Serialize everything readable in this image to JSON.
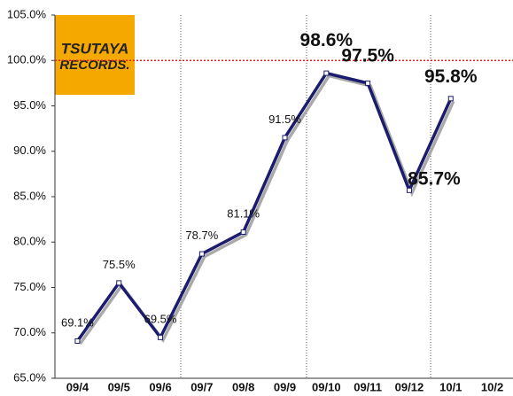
{
  "chart_data": {
    "type": "line",
    "logo": [
      "TSUTAYA",
      "RECORDS."
    ],
    "categories": [
      "09/4",
      "09/5",
      "09/6",
      "09/7",
      "09/8",
      "09/9",
      "09/10",
      "09/11",
      "09/12",
      "10/1",
      "10/2"
    ],
    "series": [
      {
        "color": "#1c1c6e",
        "values": [
          69.1,
          75.5,
          69.5,
          78.7,
          81.1,
          91.5,
          98.6,
          97.5,
          85.7,
          95.8,
          null
        ],
        "value_labels": [
          "69.1%",
          "75.5%",
          "69.5%",
          "78.7%",
          "81.1%",
          "91.5%",
          "98.6%",
          "97.5%",
          "85.7%",
          "95.8%",
          null
        ]
      }
    ],
    "ylim": [
      65,
      105
    ],
    "yticks": [
      {
        "value": 65,
        "label": "65.0%"
      },
      {
        "value": 70,
        "label": "70.0%"
      },
      {
        "value": 75,
        "label": "75.0%"
      },
      {
        "value": 80,
        "label": "80.0%"
      },
      {
        "value": 85,
        "label": "85.0%"
      },
      {
        "value": 90,
        "label": "90.0%"
      },
      {
        "value": 95,
        "label": "95.0%"
      },
      {
        "value": 100,
        "label": "100.0%"
      },
      {
        "value": 105,
        "label": "105.0%"
      }
    ],
    "reference_line": {
      "value": 100,
      "color": "#e02020"
    }
  }
}
